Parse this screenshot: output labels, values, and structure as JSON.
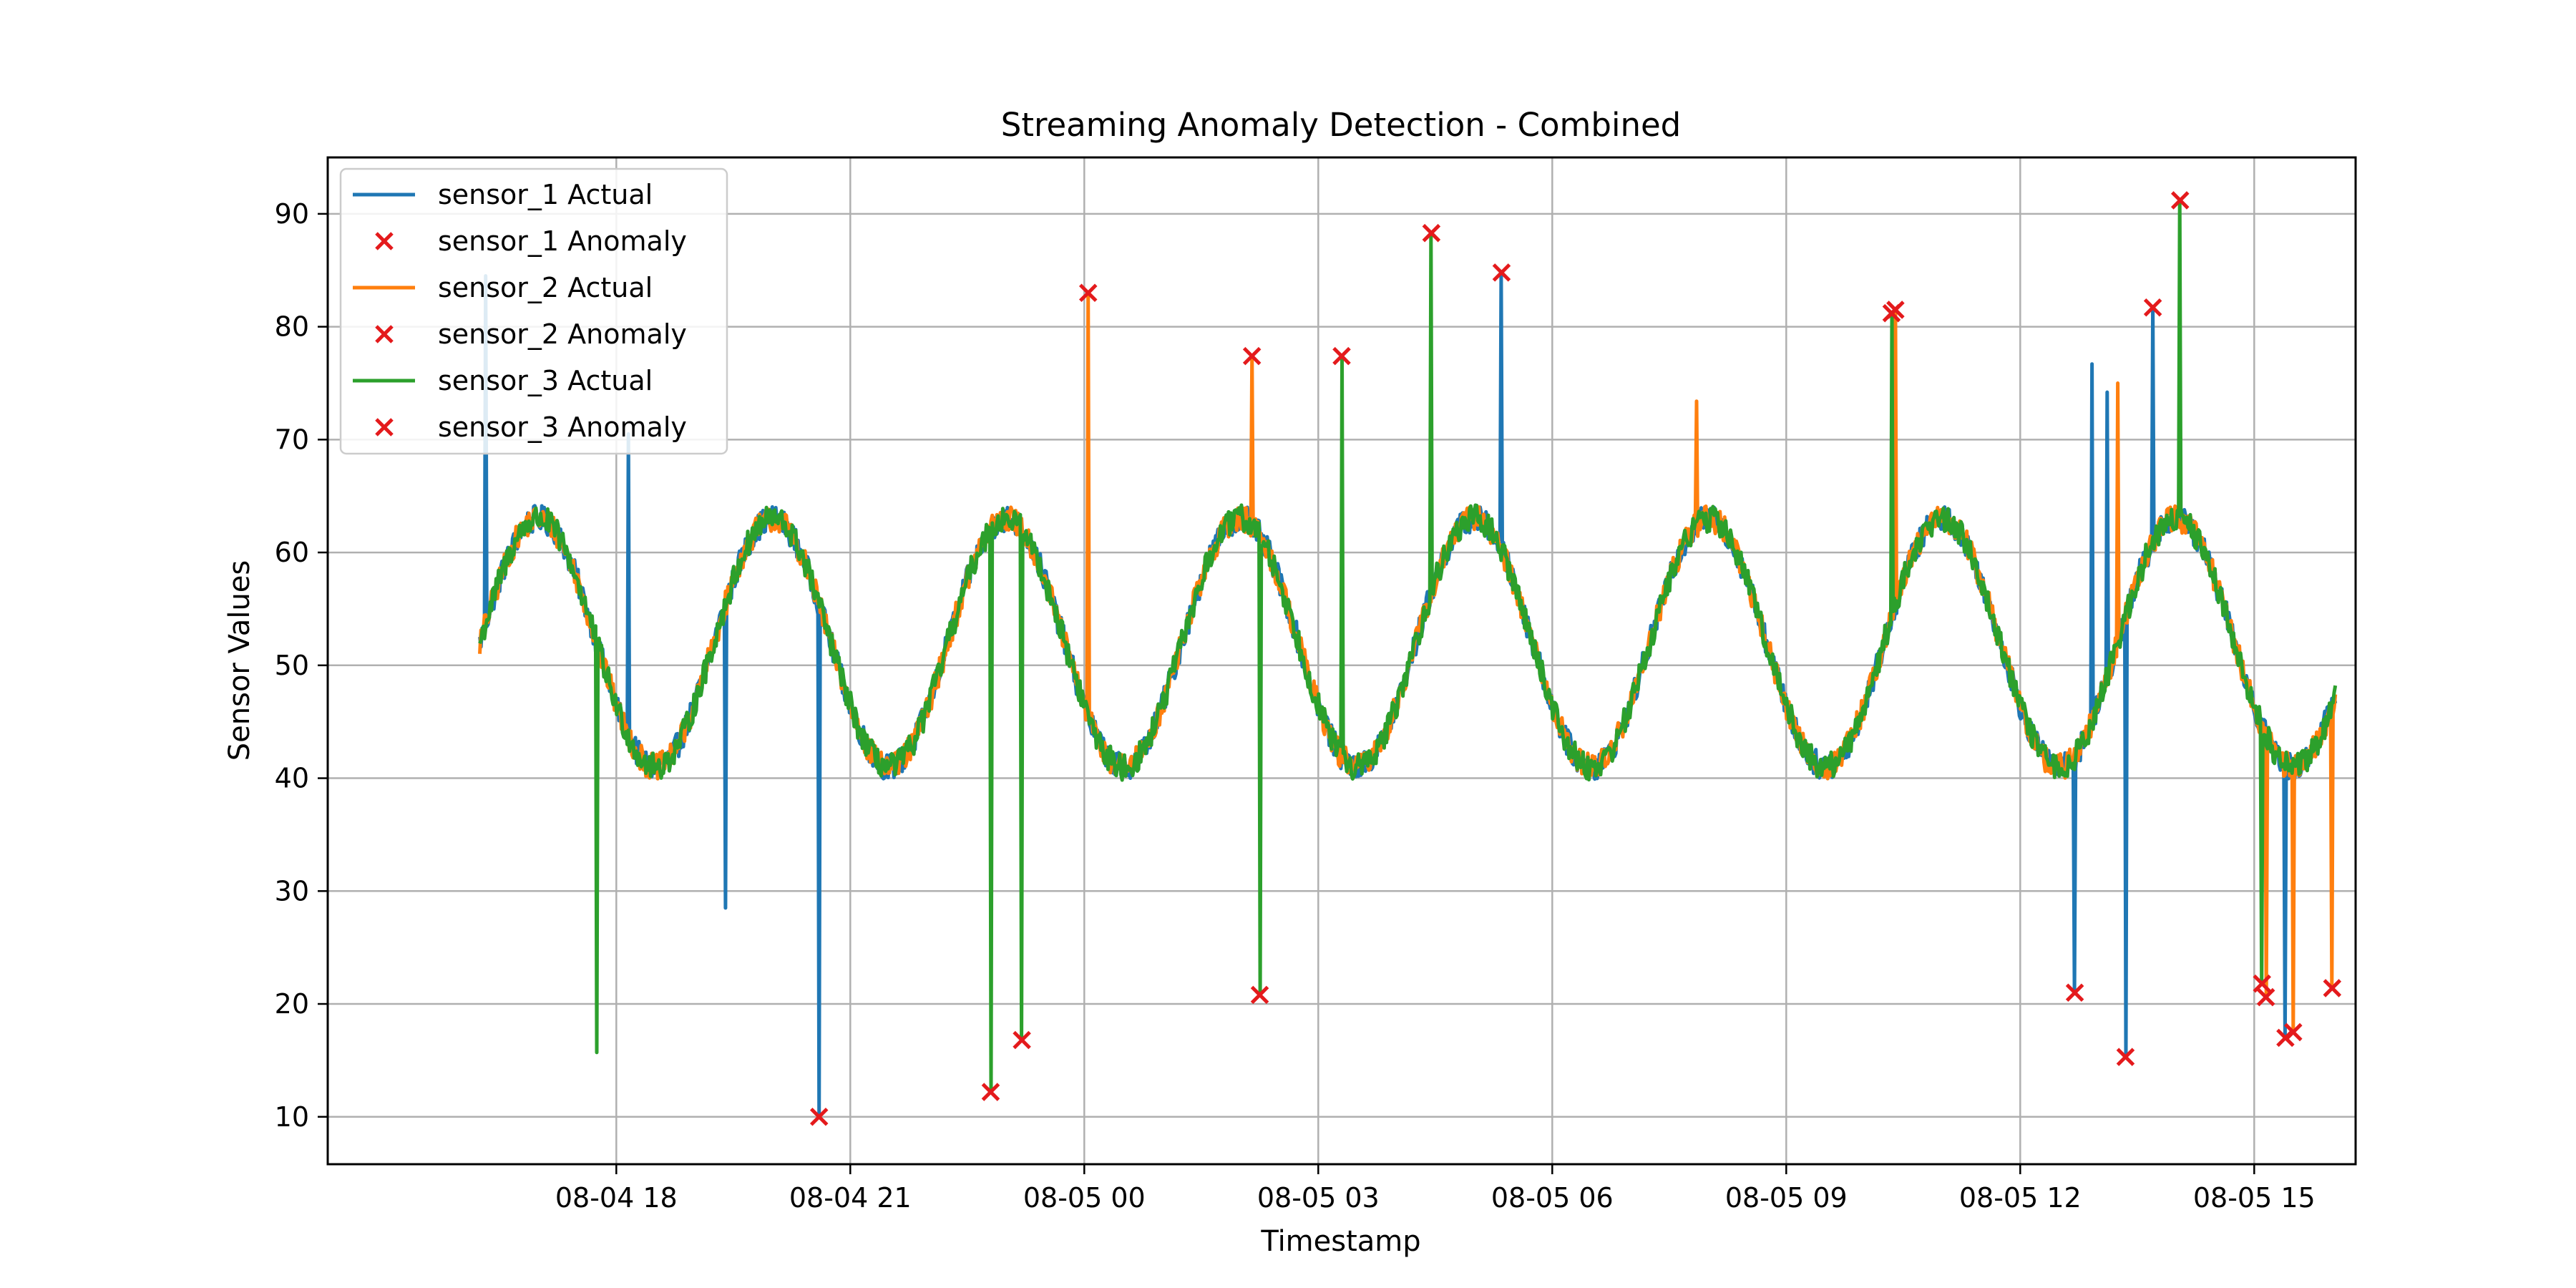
{
  "chart_data": {
    "type": "line",
    "title": "Streaming Anomaly Detection - Combined",
    "xlabel": "Timestamp",
    "ylabel": "Sensor Values",
    "x_unit": "hour offset on the axis; 0 = 08-04 16:00 (tick labels show real timestamps)",
    "xlim": [
      -1.7,
      24.3
    ],
    "ylim": [
      5.8,
      95.0
    ],
    "x_ticks": [
      {
        "x": 2,
        "label": "08-04 18"
      },
      {
        "x": 5,
        "label": "08-04 21"
      },
      {
        "x": 8,
        "label": "08-05 00"
      },
      {
        "x": 11,
        "label": "08-05 03"
      },
      {
        "x": 14,
        "label": "08-05 06"
      },
      {
        "x": 17,
        "label": "08-05 09"
      },
      {
        "x": 20,
        "label": "08-05 12"
      },
      {
        "x": 23,
        "label": "08-05 15"
      }
    ],
    "y_ticks": [
      10,
      20,
      30,
      40,
      50,
      60,
      70,
      80,
      90
    ],
    "grid": true,
    "legend_position": "top-left",
    "legend": [
      {
        "label": "sensor_1 Actual",
        "kind": "line",
        "color": "#1f77b4"
      },
      {
        "label": "sensor_1 Anomaly",
        "kind": "marker",
        "color": "#e41a1c"
      },
      {
        "label": "sensor_2 Actual",
        "kind": "line",
        "color": "#ff7f0e"
      },
      {
        "label": "sensor_2 Anomaly",
        "kind": "marker",
        "color": "#e41a1c"
      },
      {
        "label": "sensor_3 Actual",
        "kind": "line",
        "color": "#2ca02c"
      },
      {
        "label": "sensor_3 Anomaly",
        "kind": "marker",
        "color": "#e41a1c"
      }
    ],
    "baseline": {
      "description": "Each series follows a sine cycle (mean 52, amplitude 11, period 3 h) with small noise",
      "x_start": 0.25,
      "x_end": 24.05,
      "mean": 52,
      "amplitude": 11,
      "period_hours": 3,
      "phase_hours": 0.25,
      "noise": 1.2
    },
    "series": [
      {
        "name": "sensor_1 Actual",
        "color": "#1f77b4",
        "spikes": [
          {
            "x": 0.33,
            "y": 84.5
          },
          {
            "x": 2.15,
            "y": 70.5
          },
          {
            "x": 3.4,
            "y": 28.5
          },
          {
            "x": 4.6,
            "y": 10.0
          },
          {
            "x": 13.35,
            "y": 84.8
          },
          {
            "x": 20.7,
            "y": 21.0
          },
          {
            "x": 20.92,
            "y": 76.7
          },
          {
            "x": 21.12,
            "y": 74.2
          },
          {
            "x": 21.35,
            "y": 15.3
          },
          {
            "x": 21.7,
            "y": 81.7
          },
          {
            "x": 23.4,
            "y": 17.0
          }
        ],
        "anomalies": [
          {
            "x": 4.6,
            "y": 10.0
          },
          {
            "x": 13.35,
            "y": 84.8
          },
          {
            "x": 20.7,
            "y": 21.0
          },
          {
            "x": 21.35,
            "y": 15.3
          },
          {
            "x": 21.7,
            "y": 81.7
          },
          {
            "x": 23.4,
            "y": 17.0
          }
        ]
      },
      {
        "name": "sensor_2 Actual",
        "color": "#ff7f0e",
        "spikes": [
          {
            "x": 8.05,
            "y": 83.0
          },
          {
            "x": 10.15,
            "y": 77.4
          },
          {
            "x": 15.85,
            "y": 73.4
          },
          {
            "x": 18.4,
            "y": 81.5
          },
          {
            "x": 21.25,
            "y": 75.0
          },
          {
            "x": 23.15,
            "y": 20.6
          },
          {
            "x": 23.5,
            "y": 17.5
          },
          {
            "x": 24.0,
            "y": 21.4
          }
        ],
        "anomalies": [
          {
            "x": 8.05,
            "y": 83.0
          },
          {
            "x": 10.15,
            "y": 77.4
          },
          {
            "x": 18.4,
            "y": 81.5
          },
          {
            "x": 23.15,
            "y": 20.6
          },
          {
            "x": 23.5,
            "y": 17.5
          },
          {
            "x": 24.0,
            "y": 21.4
          }
        ]
      },
      {
        "name": "sensor_3 Actual",
        "color": "#2ca02c",
        "spikes": [
          {
            "x": 1.75,
            "y": 15.7
          },
          {
            "x": 6.8,
            "y": 12.2
          },
          {
            "x": 7.2,
            "y": 16.8
          },
          {
            "x": 10.25,
            "y": 20.8
          },
          {
            "x": 11.3,
            "y": 77.4
          },
          {
            "x": 12.45,
            "y": 88.3
          },
          {
            "x": 18.35,
            "y": 81.2
          },
          {
            "x": 22.05,
            "y": 91.2
          },
          {
            "x": 23.1,
            "y": 21.8
          }
        ],
        "anomalies": [
          {
            "x": 6.8,
            "y": 12.2
          },
          {
            "x": 7.2,
            "y": 16.8
          },
          {
            "x": 10.25,
            "y": 20.8
          },
          {
            "x": 11.3,
            "y": 77.4
          },
          {
            "x": 12.45,
            "y": 88.3
          },
          {
            "x": 18.35,
            "y": 81.2
          },
          {
            "x": 22.05,
            "y": 91.2
          },
          {
            "x": 23.1,
            "y": 21.8
          }
        ]
      }
    ]
  }
}
